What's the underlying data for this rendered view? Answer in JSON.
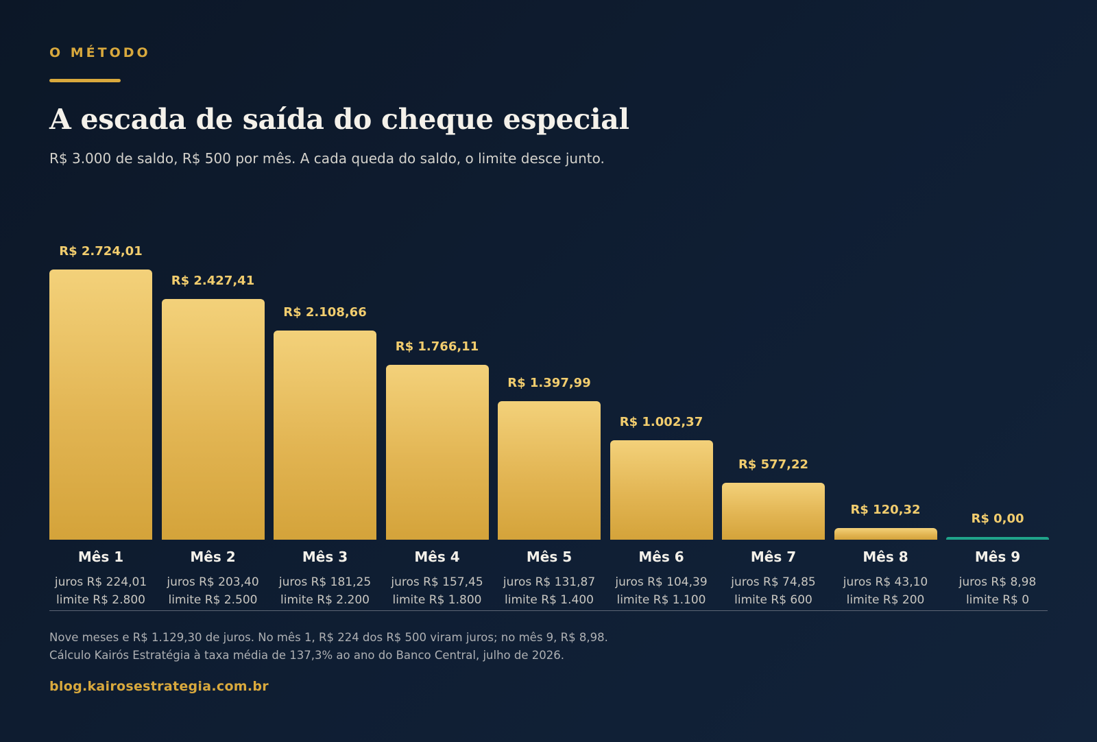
{
  "header": {
    "eyebrow": "O MÉTODO",
    "title": "A escada de saída do cheque especial",
    "subtitle": "R$ 3.000 de saldo, R$ 500 por mês. A cada queda do saldo, o limite desce junto."
  },
  "colors": {
    "accent": "#d9a93d",
    "bar": "#e2b553",
    "bar_zero": "#1fa38a",
    "background": "#0f1e33"
  },
  "chart_data": {
    "type": "bar",
    "categories": [
      "Mês 1",
      "Mês 2",
      "Mês 3",
      "Mês 4",
      "Mês 5",
      "Mês 6",
      "Mês 7",
      "Mês 8",
      "Mês 9"
    ],
    "values": [
      2724.01,
      2427.41,
      2108.66,
      1766.11,
      1397.99,
      1002.37,
      577.22,
      120.32,
      0.0
    ],
    "value_labels": [
      "R$ 2.724,01",
      "R$ 2.427,41",
      "R$ 2.108,66",
      "R$ 1.766,11",
      "R$ 1.397,99",
      "R$ 1.002,37",
      "R$ 577,22",
      "R$ 120,32",
      "R$ 0,00"
    ],
    "juros_labels": [
      "juros R$ 224,01",
      "juros R$ 203,40",
      "juros R$ 181,25",
      "juros R$ 157,45",
      "juros R$ 131,87",
      "juros R$ 104,39",
      "juros R$ 74,85",
      "juros R$ 43,10",
      "juros R$ 8,98"
    ],
    "limite_labels": [
      "limite R$ 2.800",
      "limite R$ 2.500",
      "limite R$ 2.200",
      "limite R$ 1.800",
      "limite R$ 1.400",
      "limite R$ 1.100",
      "limite R$ 600",
      "limite R$ 200",
      "limite R$ 0"
    ],
    "ylim": [
      0,
      2724.01
    ],
    "grid": false,
    "legend": "none"
  },
  "footer": {
    "note_line1": "Nove meses e R$ 1.129,30 de juros. No mês 1, R$ 224 dos R$ 500 viram juros; no mês 9, R$ 8,98.",
    "note_line2": "Cálculo Kairós Estratégia à taxa média de 137,3% ao ano do Banco Central, julho de 2026.",
    "link": "blog.kairosestrategia.com.br"
  }
}
